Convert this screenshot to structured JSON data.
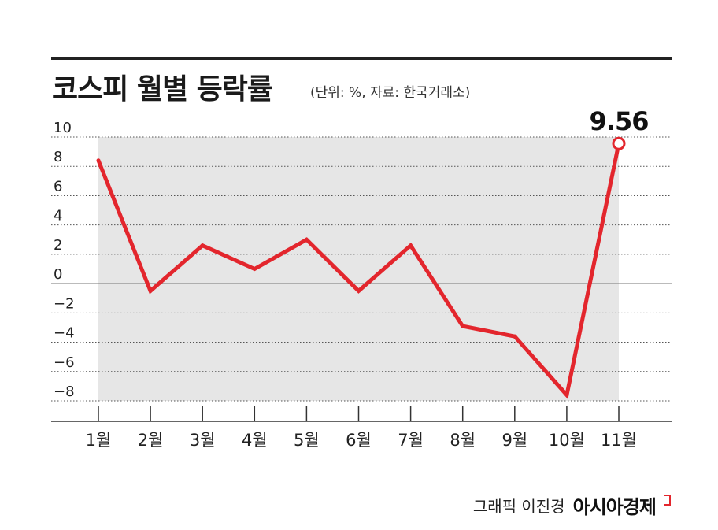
{
  "header": {
    "title": "코스피 월별 등락률",
    "subtitle": "(단위: %, 자료: 한국거래소)"
  },
  "chart_data": {
    "type": "area",
    "categories": [
      "1월",
      "2월",
      "3월",
      "4월",
      "5월",
      "6월",
      "7월",
      "8월",
      "9월",
      "10월",
      "11월"
    ],
    "series": [
      {
        "values": [
          8.4,
          -0.5,
          2.6,
          1.0,
          3.0,
          -0.5,
          2.6,
          -2.9,
          -3.6,
          -7.6,
          9.56
        ]
      }
    ],
    "yticks": [
      10,
      8,
      6,
      4,
      2,
      0,
      -2,
      -4,
      -6,
      -8
    ],
    "ylim": [
      -8,
      10
    ],
    "highlight": {
      "index": 10,
      "label": "9.56"
    },
    "grid": "dotted",
    "colors": {
      "line": "#e3262d",
      "fill": "#e6e6e6",
      "grid": "#555555"
    }
  },
  "footer": {
    "credit": "그래픽 이진경",
    "brand": "아시아경제"
  }
}
